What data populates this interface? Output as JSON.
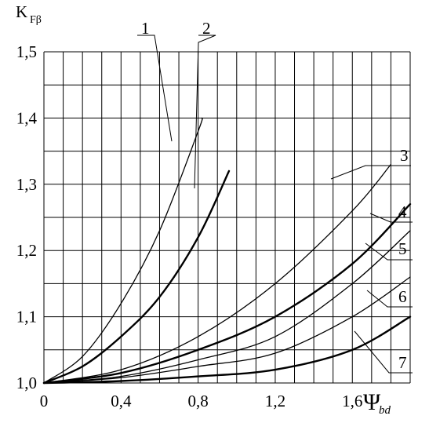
{
  "chart_data": {
    "type": "line",
    "ylabel": "K",
    "ylabel_sub": "Fβ",
    "xlabel": "Ψ",
    "xlabel_sub": "bd",
    "xlim": [
      0,
      1.9
    ],
    "ylim": [
      1.0,
      1.5
    ],
    "grid": true,
    "x_ticks": [
      {
        "value": 0,
        "label": "0"
      },
      {
        "value": 0.4,
        "label": "0,4"
      },
      {
        "value": 0.8,
        "label": "0,8"
      },
      {
        "value": 1.2,
        "label": "1,2"
      },
      {
        "value": 1.6,
        "label": "1,6"
      }
    ],
    "y_ticks": [
      {
        "value": 1.0,
        "label": "1,0"
      },
      {
        "value": 1.1,
        "label": "1,1"
      },
      {
        "value": 1.2,
        "label": "1,2"
      },
      {
        "value": 1.3,
        "label": "1,3"
      },
      {
        "value": 1.4,
        "label": "1,4"
      },
      {
        "value": 1.5,
        "label": "1,5"
      }
    ],
    "series": [
      {
        "name": "1",
        "weight": "thin",
        "x": [
          0,
          0.2,
          0.4,
          0.6,
          0.8,
          0.82
        ],
        "y": [
          1.0,
          1.04,
          1.12,
          1.23,
          1.38,
          1.4
        ]
      },
      {
        "name": "2",
        "weight": "thick",
        "x": [
          0,
          0.2,
          0.4,
          0.6,
          0.8,
          0.96
        ],
        "y": [
          1.0,
          1.025,
          1.07,
          1.13,
          1.22,
          1.32
        ]
      },
      {
        "name": "3",
        "weight": "thin",
        "x": [
          0,
          0.4,
          0.8,
          1.2,
          1.6,
          1.8
        ],
        "y": [
          1.0,
          1.02,
          1.07,
          1.15,
          1.26,
          1.33
        ]
      },
      {
        "name": "4",
        "weight": "thick",
        "x": [
          0,
          0.4,
          0.8,
          1.2,
          1.6,
          1.9
        ],
        "y": [
          1.0,
          1.015,
          1.05,
          1.1,
          1.18,
          1.27
        ]
      },
      {
        "name": "5",
        "weight": "thin",
        "x": [
          0,
          0.4,
          0.8,
          1.2,
          1.6,
          1.9
        ],
        "y": [
          1.0,
          1.01,
          1.035,
          1.07,
          1.15,
          1.23
        ]
      },
      {
        "name": "6",
        "weight": "thin",
        "x": [
          0,
          0.4,
          0.8,
          1.2,
          1.6,
          1.9
        ],
        "y": [
          1.0,
          1.008,
          1.025,
          1.045,
          1.1,
          1.16
        ]
      },
      {
        "name": "7",
        "weight": "thick",
        "x": [
          0,
          0.4,
          0.8,
          1.2,
          1.6,
          1.9
        ],
        "y": [
          1.0,
          1.003,
          1.01,
          1.02,
          1.05,
          1.1
        ]
      }
    ]
  }
}
